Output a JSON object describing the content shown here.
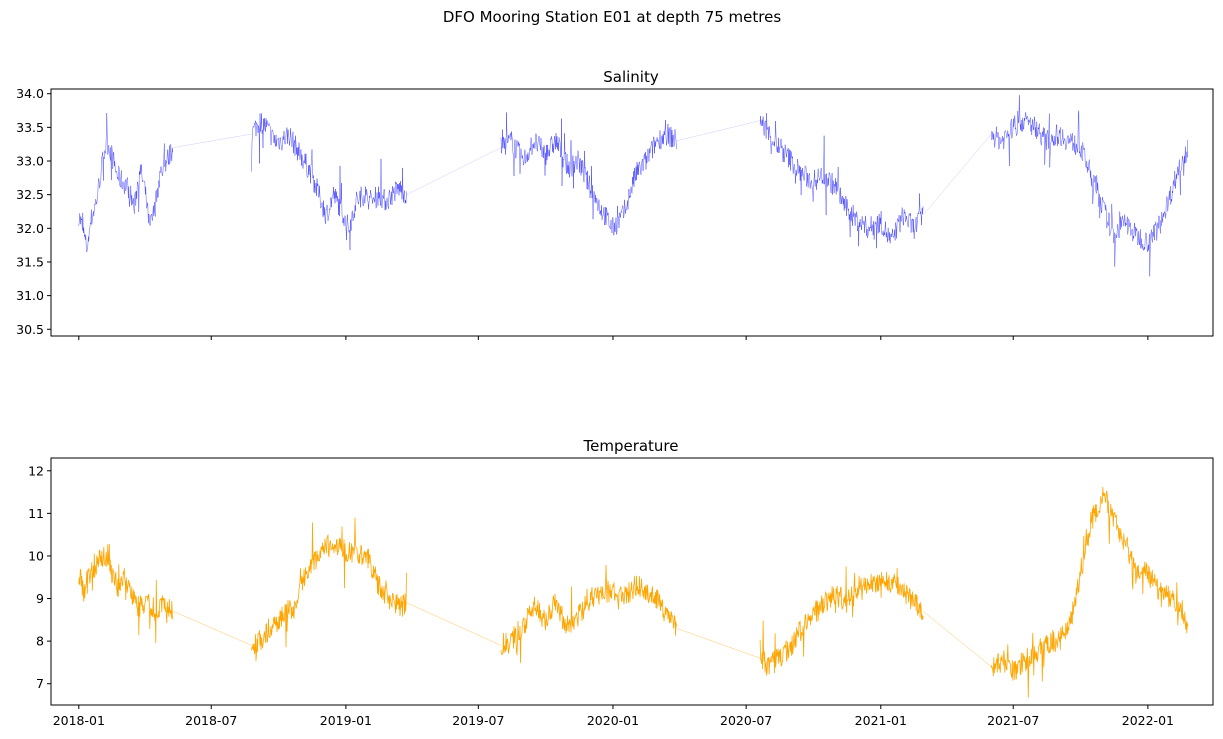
{
  "figure": {
    "suptitle": "DFO Mooring Station E01 at depth 75 metres"
  },
  "chart_data": [
    {
      "type": "line",
      "title": "Salinity",
      "color": "#0000ff",
      "xlim": [
        "2017-11-24",
        "2022-03-31"
      ],
      "ylim": [
        30.4,
        34.07
      ],
      "yticks": [
        30.5,
        31.0,
        31.5,
        32.0,
        32.5,
        33.0,
        33.5,
        34.0
      ],
      "ytick_labels": [
        "30.5",
        "31.0",
        "31.5",
        "32.0",
        "32.5",
        "33.0",
        "33.5",
        "34.0"
      ],
      "xticks": [
        "2018-01-01",
        "2018-07-01",
        "2019-01-01",
        "2019-07-01",
        "2020-01-01",
        "2020-07-01",
        "2021-01-01",
        "2021-07-01",
        "2022-01-01"
      ],
      "xtick_labels_shown": false,
      "grid": false,
      "legend": "none",
      "series": [
        {
          "segments": [
            {
              "x": [
                "2018-01-01",
                "2018-01-06",
                "2018-01-12",
                "2018-01-17",
                "2018-01-25",
                "2018-02-01",
                "2018-02-08",
                "2018-02-15",
                "2018-02-22",
                "2018-03-01",
                "2018-03-10",
                "2018-03-18",
                "2018-03-25",
                "2018-04-01",
                "2018-04-08",
                "2018-04-15",
                "2018-04-22",
                "2018-05-01",
                "2018-05-10"
              ],
              "y": [
                32.2,
                32.0,
                31.7,
                32.1,
                32.4,
                32.9,
                33.3,
                33.1,
                32.8,
                32.7,
                32.6,
                32.3,
                32.9,
                32.6,
                32.0,
                32.3,
                32.8,
                33.0,
                33.2
              ]
            },
            {
              "x": [
                "2018-08-25",
                "2018-09-05",
                "2018-09-15",
                "2018-09-25",
                "2018-10-05",
                "2018-10-15",
                "2018-10-25",
                "2018-11-05",
                "2018-11-15",
                "2018-11-25",
                "2018-12-05",
                "2018-12-15",
                "2018-12-25",
                "2019-01-05",
                "2019-01-15",
                "2019-01-25",
                "2019-02-05",
                "2019-02-15",
                "2019-02-25",
                "2019-03-05",
                "2019-03-15",
                "2019-03-25"
              ],
              "y": [
                33.4,
                33.6,
                33.5,
                33.3,
                33.3,
                33.4,
                33.2,
                33.0,
                32.8,
                32.5,
                32.2,
                32.5,
                32.3,
                32.0,
                32.4,
                32.5,
                32.4,
                32.5,
                32.4,
                32.5,
                32.6,
                32.5
              ]
            },
            {
              "x": [
                "2019-08-01",
                "2019-08-15",
                "2019-09-01",
                "2019-09-15",
                "2019-10-01",
                "2019-10-15",
                "2019-11-01",
                "2019-11-15",
                "2019-12-01",
                "2019-12-15",
                "2020-01-01",
                "2020-01-15",
                "2020-02-01",
                "2020-02-15",
                "2020-03-01",
                "2020-03-15",
                "2020-03-28"
              ],
              "y": [
                33.2,
                33.3,
                33.0,
                33.3,
                33.1,
                33.3,
                32.9,
                33.0,
                32.6,
                32.3,
                32.0,
                32.2,
                32.8,
                33.0,
                33.3,
                33.4,
                33.3
              ]
            },
            {
              "x": [
                "2020-07-20",
                "2020-08-01",
                "2020-08-15",
                "2020-09-01",
                "2020-09-15",
                "2020-10-01",
                "2020-10-15",
                "2020-11-01",
                "2020-11-15",
                "2020-12-01",
                "2020-12-15",
                "2021-01-01",
                "2021-01-15",
                "2021-02-01",
                "2021-02-15",
                "2021-02-28"
              ],
              "y": [
                33.6,
                33.4,
                33.2,
                33.0,
                32.8,
                32.7,
                32.8,
                32.6,
                32.3,
                32.1,
                32.0,
                32.1,
                31.8,
                32.2,
                32.0,
                32.2
              ]
            },
            {
              "x": [
                "2021-06-01",
                "2021-06-15",
                "2021-07-01",
                "2021-07-15",
                "2021-08-01",
                "2021-08-15",
                "2021-09-01",
                "2021-09-15",
                "2021-10-01",
                "2021-10-15",
                "2021-11-01",
                "2021-11-15",
                "2021-12-01",
                "2021-12-15",
                "2022-01-01",
                "2022-01-15",
                "2022-02-01",
                "2022-02-15",
                "2022-02-25"
              ],
              "y": [
                33.4,
                33.3,
                33.5,
                33.6,
                33.5,
                33.3,
                33.4,
                33.3,
                33.2,
                32.8,
                32.3,
                31.9,
                32.1,
                31.9,
                31.8,
                32.0,
                32.5,
                33.0,
                33.2
              ]
            }
          ]
        }
      ]
    },
    {
      "type": "line",
      "title": "Temperature",
      "color": "#ffa500",
      "xlim": [
        "2017-11-24",
        "2022-03-31"
      ],
      "ylim": [
        6.5,
        12.3
      ],
      "yticks": [
        7,
        8,
        9,
        10,
        11,
        12
      ],
      "ytick_labels": [
        "7",
        "8",
        "9",
        "10",
        "11",
        "12"
      ],
      "xticks": [
        "2018-01-01",
        "2018-07-01",
        "2019-01-01",
        "2019-07-01",
        "2020-01-01",
        "2020-07-01",
        "2021-01-01",
        "2021-07-01",
        "2022-01-01"
      ],
      "xtick_labels": [
        "2018-01",
        "2018-07",
        "2019-01",
        "2019-07",
        "2020-01",
        "2020-07",
        "2021-01",
        "2021-07",
        "2022-01"
      ],
      "grid": false,
      "legend": "none",
      "series": [
        {
          "segments": [
            {
              "x": [
                "2018-01-01",
                "2018-01-08",
                "2018-01-15",
                "2018-01-25",
                "2018-02-05",
                "2018-02-15",
                "2018-02-25",
                "2018-03-05",
                "2018-03-15",
                "2018-03-25",
                "2018-04-05",
                "2018-04-15",
                "2018-04-25",
                "2018-05-05",
                "2018-05-10"
              ],
              "y": [
                9.6,
                9.2,
                9.6,
                9.8,
                10.0,
                9.6,
                9.2,
                9.5,
                9.0,
                8.8,
                9.0,
                8.7,
                8.9,
                8.8,
                8.7
              ]
            },
            {
              "x": [
                "2018-08-25",
                "2018-09-05",
                "2018-09-20",
                "2018-10-05",
                "2018-10-20",
                "2018-11-01",
                "2018-11-15",
                "2018-12-01",
                "2018-12-15",
                "2019-01-01",
                "2019-01-15",
                "2019-02-01",
                "2019-02-15",
                "2019-03-01",
                "2019-03-15",
                "2019-03-25"
              ],
              "y": [
                7.9,
                8.0,
                8.3,
                8.6,
                8.8,
                9.3,
                9.8,
                10.2,
                10.3,
                10.1,
                10.1,
                9.9,
                9.3,
                9.0,
                8.8,
                8.9
              ]
            },
            {
              "x": [
                "2019-08-01",
                "2019-08-15",
                "2019-09-01",
                "2019-09-15",
                "2019-10-01",
                "2019-10-15",
                "2019-11-01",
                "2019-11-15",
                "2019-12-01",
                "2019-12-15",
                "2020-01-01",
                "2020-01-15",
                "2020-02-01",
                "2020-02-15",
                "2020-03-01",
                "2020-03-15",
                "2020-03-28"
              ],
              "y": [
                7.9,
                8.0,
                8.4,
                8.8,
                8.5,
                8.9,
                8.3,
                8.6,
                9.0,
                9.1,
                9.2,
                9.0,
                9.3,
                9.2,
                9.0,
                8.6,
                8.3
              ]
            },
            {
              "x": [
                "2020-07-20",
                "2020-08-01",
                "2020-08-15",
                "2020-09-01",
                "2020-09-15",
                "2020-10-01",
                "2020-10-15",
                "2020-11-01",
                "2020-11-15",
                "2020-12-01",
                "2020-12-15",
                "2021-01-01",
                "2021-01-15",
                "2021-02-01",
                "2021-02-15",
                "2021-02-28"
              ],
              "y": [
                7.6,
                7.4,
                7.6,
                7.9,
                8.3,
                8.6,
                8.9,
                9.1,
                8.9,
                9.2,
                9.3,
                9.4,
                9.4,
                9.2,
                8.9,
                8.7
              ]
            },
            {
              "x": [
                "2021-06-01",
                "2021-06-15",
                "2021-07-01",
                "2021-07-15",
                "2021-08-01",
                "2021-08-15",
                "2021-09-01",
                "2021-09-15",
                "2021-10-01",
                "2021-10-15",
                "2021-11-01",
                "2021-11-15",
                "2021-12-01",
                "2021-12-15",
                "2022-01-01",
                "2022-01-15",
                "2022-02-01",
                "2022-02-15",
                "2022-02-25"
              ],
              "y": [
                7.4,
                7.6,
                7.3,
                7.5,
                7.8,
                7.9,
                8.0,
                8.3,
                9.5,
                10.8,
                11.4,
                10.9,
                10.3,
                9.6,
                9.6,
                9.2,
                9.0,
                8.8,
                8.3
              ]
            }
          ]
        }
      ]
    }
  ]
}
